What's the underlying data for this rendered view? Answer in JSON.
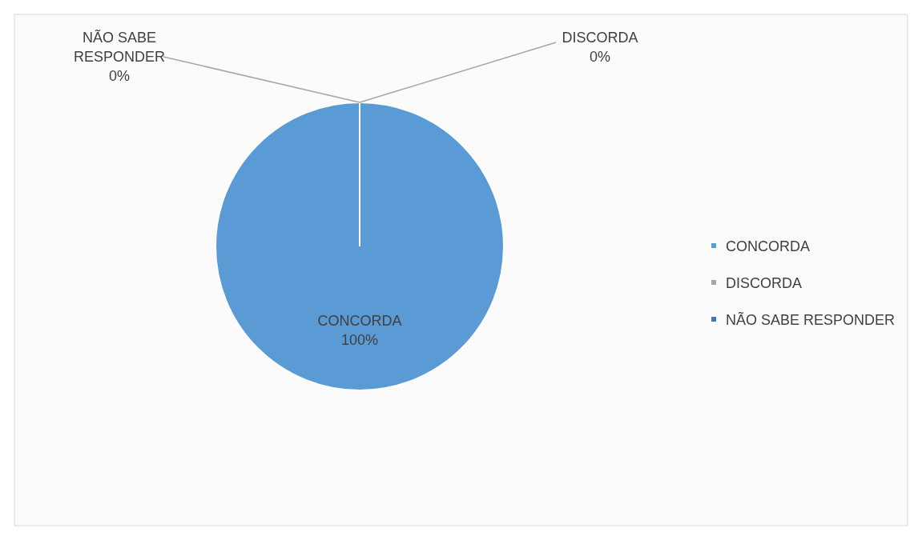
{
  "chart_data": {
    "type": "pie",
    "categories": [
      "CONCORDA",
      "DISCORDA",
      "NÃO SABE RESPONDER"
    ],
    "values": [
      100,
      0,
      0
    ],
    "value_labels": [
      "100%",
      "0%",
      "0%"
    ],
    "colors": [
      "#5b9bd5",
      "#a5a5a5",
      "#4472c4"
    ],
    "legend": "right"
  }
}
